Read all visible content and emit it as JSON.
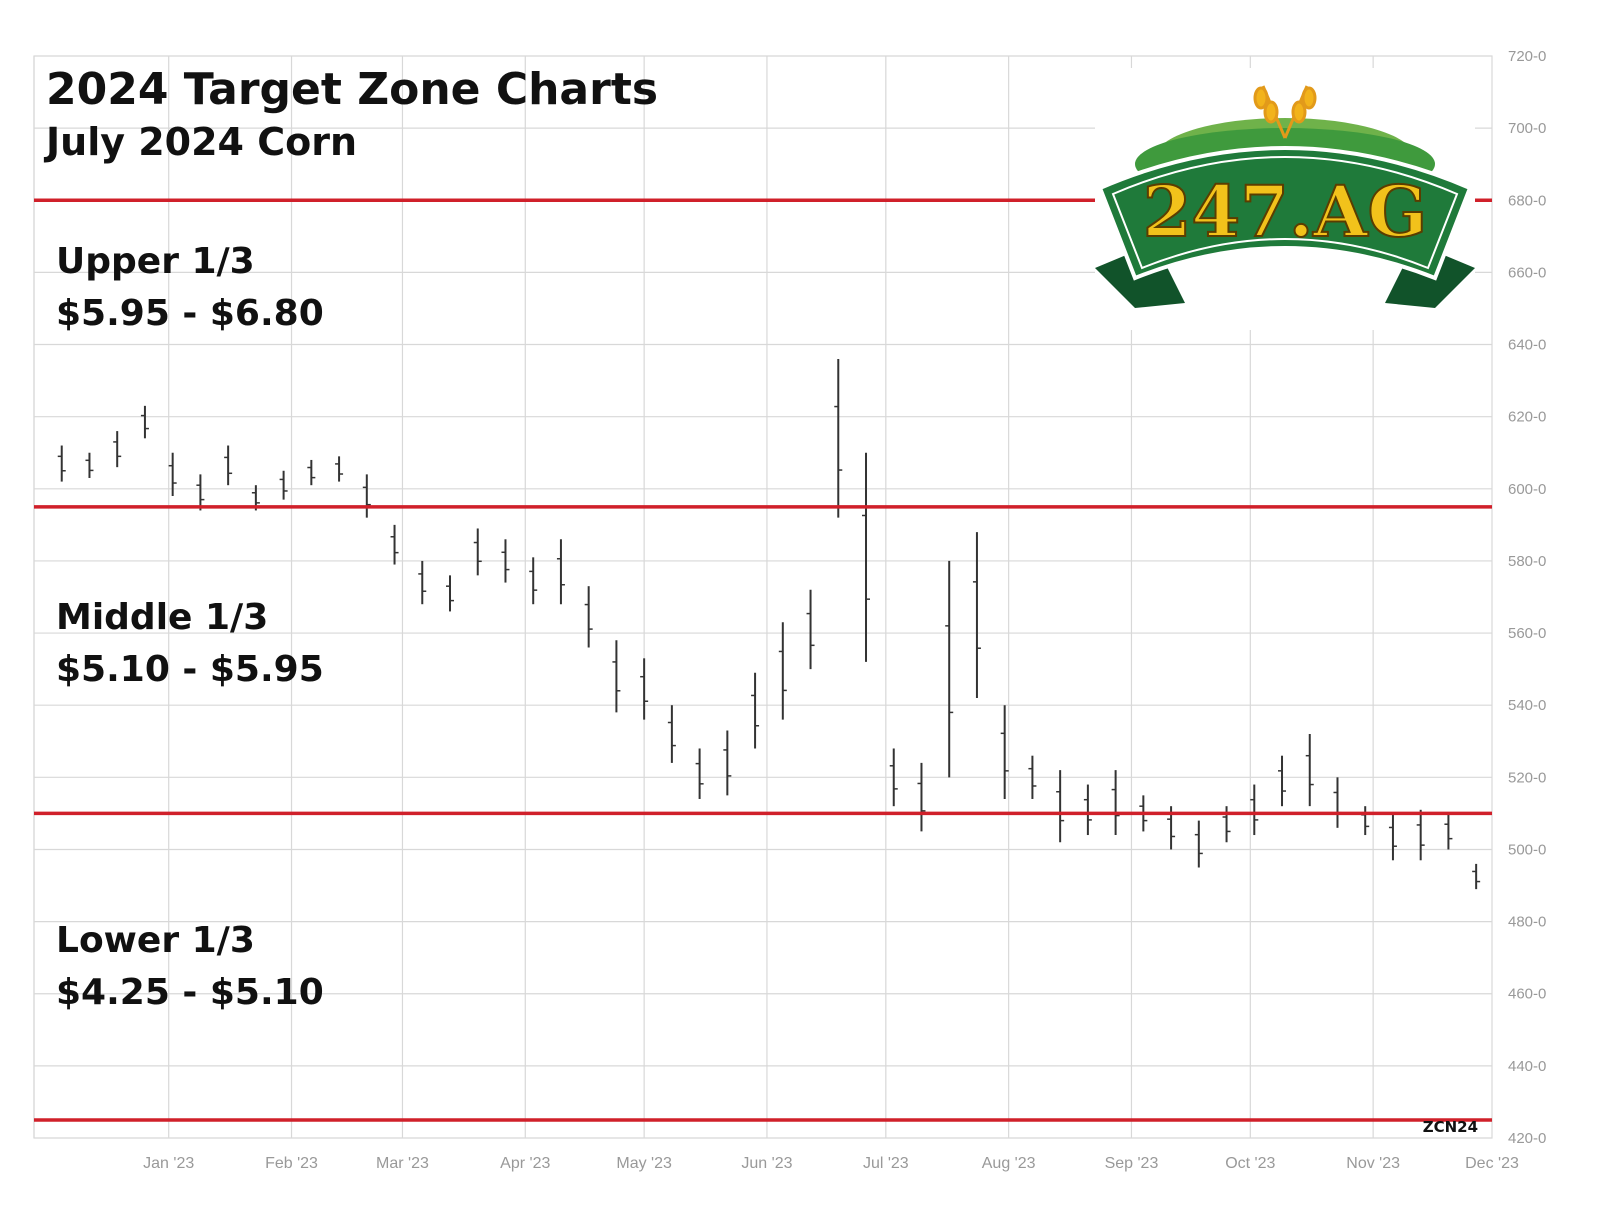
{
  "title": "2024 Target Zone Charts",
  "subtitle": "July 2024 Corn",
  "logo_text": "247.AG",
  "symbol": "ZCN24",
  "zones": [
    {
      "name": "Upper 1/3",
      "range": "$5.95 - $6.80"
    },
    {
      "name": "Middle 1/3",
      "range": "$5.10 - $5.95"
    },
    {
      "name": "Lower 1/3",
      "range": "$4.25 - $5.10"
    }
  ],
  "colors": {
    "zone_line": "#d0202a",
    "bars": "#333333",
    "grid": "#d8d8d8",
    "axis_text": "#999999",
    "logo_green": "#1f7a3a",
    "logo_gold": "#f2c21b"
  },
  "chart_data": {
    "type": "ohlc",
    "ylim": [
      420,
      720
    ],
    "y_ticks": [
      "420-0",
      "440-0",
      "460-0",
      "480-0",
      "500-0",
      "520-0",
      "540-0",
      "560-0",
      "580-0",
      "600-0",
      "620-0",
      "640-0",
      "660-0",
      "680-0",
      "700-0",
      "720-0"
    ],
    "x_labels": [
      "Jan '23",
      "Feb '23",
      "Mar '23",
      "Apr '23",
      "May '23",
      "Jun '23",
      "Jul '23",
      "Aug '23",
      "Sep '23",
      "Oct '23",
      "Nov '23",
      "Dec '23"
    ],
    "zone_lines": [
      680,
      595,
      510,
      425
    ],
    "grid": true,
    "series": [
      {
        "date": "2022-12-05",
        "low": 602,
        "high": 612
      },
      {
        "date": "2022-12-12",
        "low": 603,
        "high": 610
      },
      {
        "date": "2022-12-19",
        "low": 606,
        "high": 616
      },
      {
        "date": "2022-12-26",
        "low": 614,
        "high": 623
      },
      {
        "date": "2023-01-02",
        "low": 598,
        "high": 610
      },
      {
        "date": "2023-01-09",
        "low": 594,
        "high": 604
      },
      {
        "date": "2023-01-16",
        "low": 601,
        "high": 612
      },
      {
        "date": "2023-01-23",
        "low": 594,
        "high": 601
      },
      {
        "date": "2023-01-30",
        "low": 597,
        "high": 605
      },
      {
        "date": "2023-02-06",
        "low": 601,
        "high": 608
      },
      {
        "date": "2023-02-13",
        "low": 602,
        "high": 609
      },
      {
        "date": "2023-02-20",
        "low": 592,
        "high": 604
      },
      {
        "date": "2023-02-27",
        "low": 579,
        "high": 590
      },
      {
        "date": "2023-03-06",
        "low": 568,
        "high": 580
      },
      {
        "date": "2023-03-13",
        "low": 566,
        "high": 576
      },
      {
        "date": "2023-03-20",
        "low": 576,
        "high": 589
      },
      {
        "date": "2023-03-27",
        "low": 574,
        "high": 586
      },
      {
        "date": "2023-04-03",
        "low": 568,
        "high": 581
      },
      {
        "date": "2023-04-10",
        "low": 568,
        "high": 586
      },
      {
        "date": "2023-04-17",
        "low": 556,
        "high": 573
      },
      {
        "date": "2023-04-24",
        "low": 538,
        "high": 558
      },
      {
        "date": "2023-05-01",
        "low": 536,
        "high": 553
      },
      {
        "date": "2023-05-08",
        "low": 524,
        "high": 540
      },
      {
        "date": "2023-05-15",
        "low": 514,
        "high": 528
      },
      {
        "date": "2023-05-22",
        "low": 515,
        "high": 533
      },
      {
        "date": "2023-05-29",
        "low": 528,
        "high": 549
      },
      {
        "date": "2023-06-05",
        "low": 536,
        "high": 563
      },
      {
        "date": "2023-06-12",
        "low": 550,
        "high": 572
      },
      {
        "date": "2023-06-19",
        "low": 592,
        "high": 636
      },
      {
        "date": "2023-06-26",
        "low": 552,
        "high": 610
      },
      {
        "date": "2023-07-03",
        "low": 512,
        "high": 528
      },
      {
        "date": "2023-07-10",
        "low": 505,
        "high": 524
      },
      {
        "date": "2023-07-17",
        "low": 520,
        "high": 580
      },
      {
        "date": "2023-07-24",
        "low": 542,
        "high": 588
      },
      {
        "date": "2023-07-31",
        "low": 514,
        "high": 540
      },
      {
        "date": "2023-08-07",
        "low": 514,
        "high": 526
      },
      {
        "date": "2023-08-14",
        "low": 502,
        "high": 522
      },
      {
        "date": "2023-08-21",
        "low": 504,
        "high": 518
      },
      {
        "date": "2023-08-28",
        "low": 504,
        "high": 522
      },
      {
        "date": "2023-09-04",
        "low": 505,
        "high": 515
      },
      {
        "date": "2023-09-11",
        "low": 500,
        "high": 512
      },
      {
        "date": "2023-09-18",
        "low": 495,
        "high": 508
      },
      {
        "date": "2023-09-25",
        "low": 502,
        "high": 512
      },
      {
        "date": "2023-10-02",
        "low": 504,
        "high": 518
      },
      {
        "date": "2023-10-09",
        "low": 512,
        "high": 526
      },
      {
        "date": "2023-10-16",
        "low": 512,
        "high": 532
      },
      {
        "date": "2023-10-23",
        "low": 506,
        "high": 520
      },
      {
        "date": "2023-10-30",
        "low": 504,
        "high": 512
      },
      {
        "date": "2023-11-06",
        "low": 497,
        "high": 510
      },
      {
        "date": "2023-11-13",
        "low": 497,
        "high": 511
      },
      {
        "date": "2023-11-20",
        "low": 500,
        "high": 510
      },
      {
        "date": "2023-11-27",
        "low": 489,
        "high": 496
      }
    ]
  }
}
